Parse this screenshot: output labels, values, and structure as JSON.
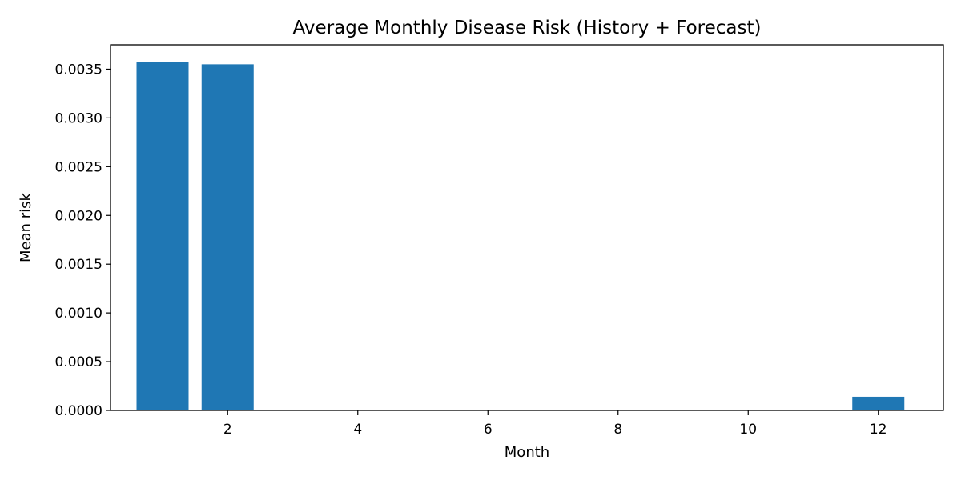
{
  "chart_data": {
    "type": "bar",
    "title": "Average Monthly Disease Risk (History + Forecast)",
    "xlabel": "Month",
    "ylabel": "Mean risk",
    "x": [
      1,
      2,
      12
    ],
    "values": [
      0.00357,
      0.00355,
      0.00014
    ],
    "xlim": [
      0.2,
      13.0
    ],
    "ylim": [
      0,
      0.00375
    ],
    "xticks": [
      2,
      4,
      6,
      8,
      10,
      12
    ],
    "xtick_labels": [
      "2",
      "4",
      "6",
      "8",
      "10",
      "12"
    ],
    "yticks": [
      0,
      0.0005,
      0.001,
      0.0015,
      0.002,
      0.0025,
      0.003,
      0.0035
    ],
    "ytick_labels": [
      "0.0000",
      "0.0005",
      "0.0010",
      "0.0015",
      "0.0020",
      "0.0025",
      "0.0030",
      "0.0035"
    ],
    "bar_color": "#1f77b4",
    "grid": false,
    "legend": null
  }
}
